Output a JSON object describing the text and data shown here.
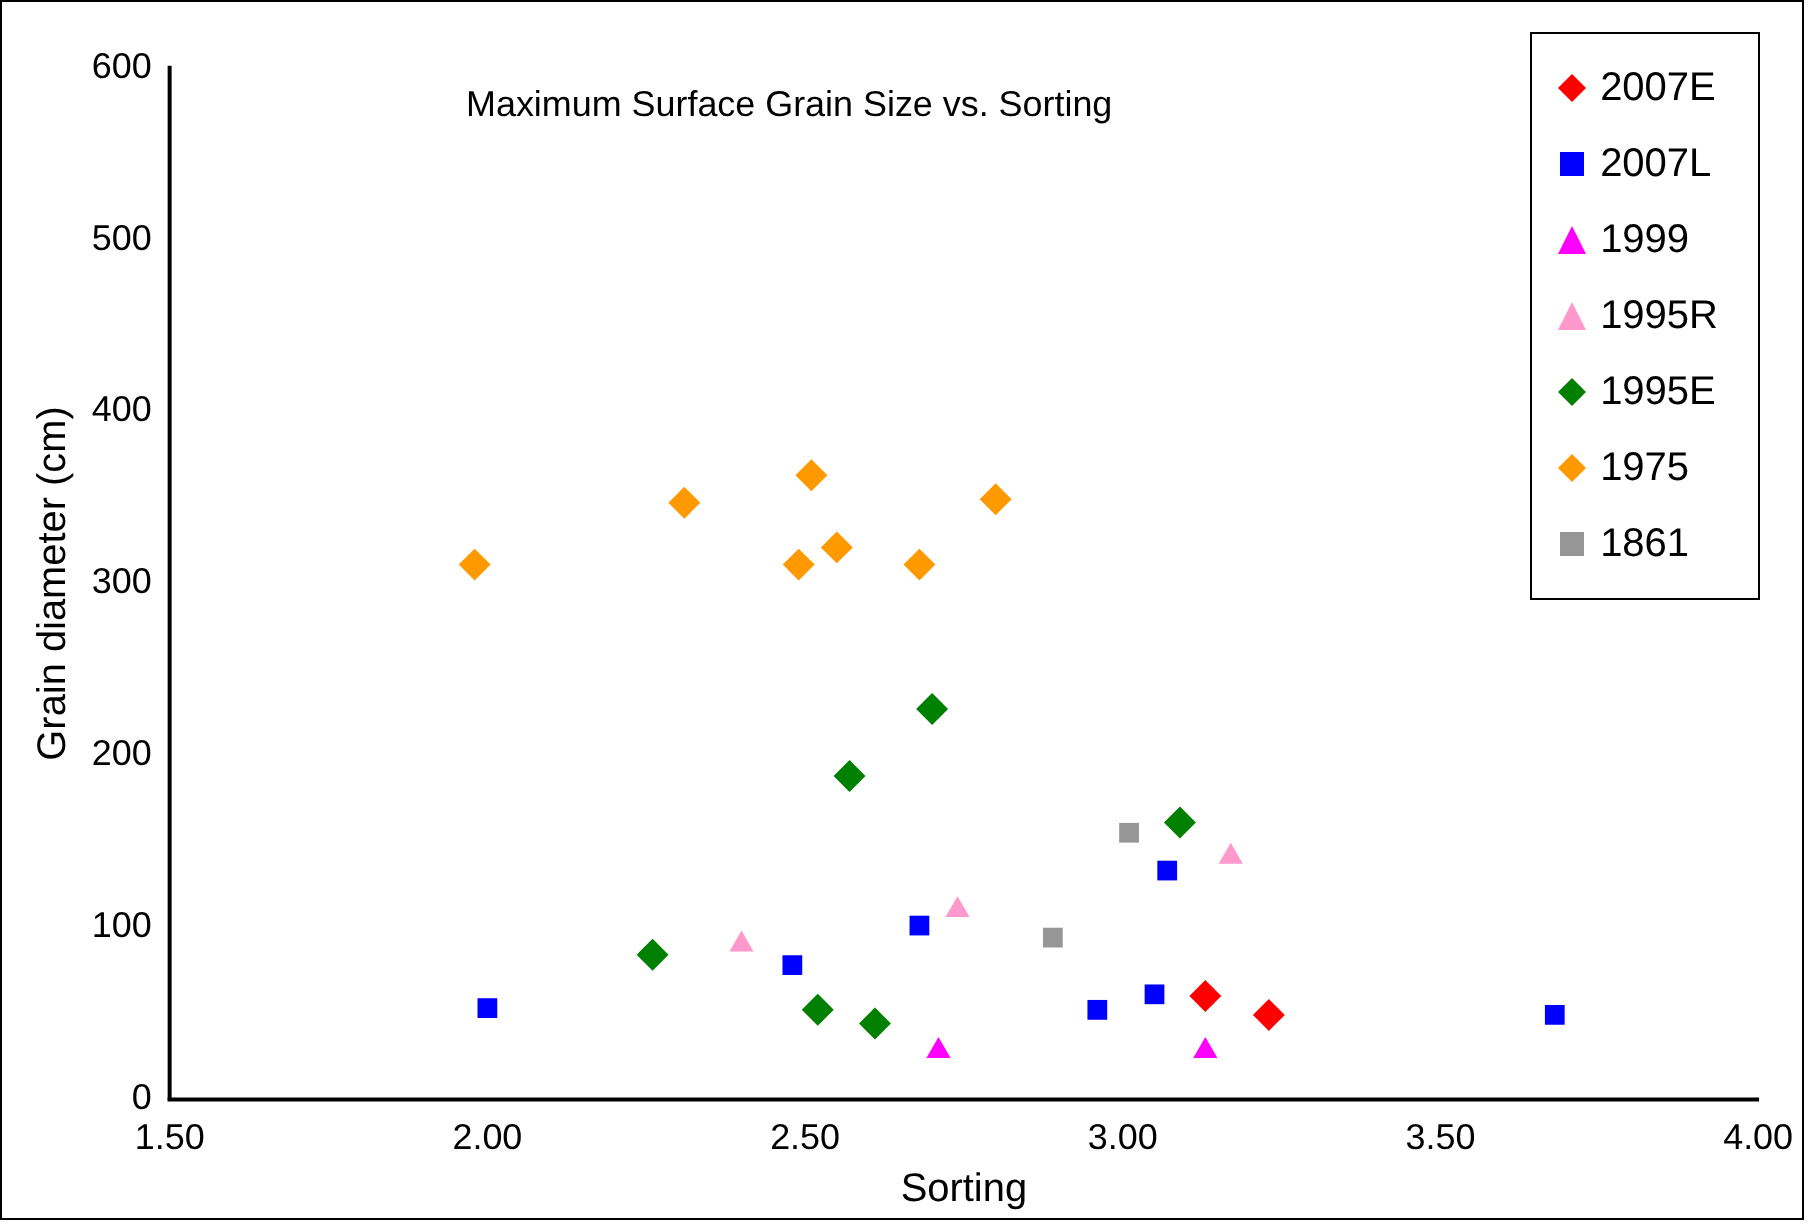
{
  "chart_data": {
    "type": "scatter",
    "title": "Maximum Surface Grain Size vs. Sorting",
    "xlabel": "Sorting",
    "ylabel": "Grain diameter (cm)",
    "xlim": [
      1.5,
      4
    ],
    "xticks": [
      {
        "value": 1.5,
        "label": "1.50"
      },
      {
        "value": 2,
        "label": "2.00"
      },
      {
        "value": 2.5,
        "label": "2.50"
      },
      {
        "value": 3,
        "label": "3.00"
      },
      {
        "value": 3.5,
        "label": "3.50"
      },
      {
        "value": 4,
        "label": "4.00"
      }
    ],
    "ylim": [
      0,
      600
    ],
    "yticks": [
      0,
      100,
      200,
      300,
      400,
      500,
      600
    ],
    "grid": false,
    "legend": "top right",
    "series": [
      {
        "name": "2007E",
        "color": "#ff0000",
        "marker": "diamond",
        "x": [
          3.13,
          3.23
        ],
        "values": [
          60,
          49
        ]
      },
      {
        "name": "2007L",
        "color": "#0000ff",
        "marker": "square",
        "x": [
          2.0,
          2.48,
          2.68,
          2.96,
          3.05,
          3.07,
          3.68
        ],
        "values": [
          53,
          78,
          101,
          52,
          61,
          133,
          49
        ]
      },
      {
        "name": "1999",
        "color": "#ff00ff",
        "marker": "triangle",
        "x": [
          2.71,
          3.13
        ],
        "values": [
          28,
          28
        ]
      },
      {
        "name": "1995R",
        "color": "#ff99cc",
        "marker": "triangle",
        "x": [
          2.4,
          2.74,
          3.17
        ],
        "values": [
          90,
          110,
          141
        ]
      },
      {
        "name": "1995E",
        "color": "#008000",
        "marker": "diamond",
        "x": [
          2.26,
          2.52,
          2.61,
          2.57,
          2.7,
          3.09
        ],
        "values": [
          84,
          52,
          44,
          188,
          227,
          161
        ]
      },
      {
        "name": "1975",
        "color": "#ff9900",
        "marker": "diamond",
        "x": [
          1.98,
          2.31,
          2.51,
          2.49,
          2.55,
          2.68,
          2.8
        ],
        "values": [
          311,
          347,
          363,
          311,
          321,
          311,
          349
        ]
      },
      {
        "name": "1861",
        "color": "#969696",
        "marker": "square",
        "x": [
          3.01,
          2.89
        ],
        "values": [
          155,
          94
        ]
      }
    ]
  }
}
